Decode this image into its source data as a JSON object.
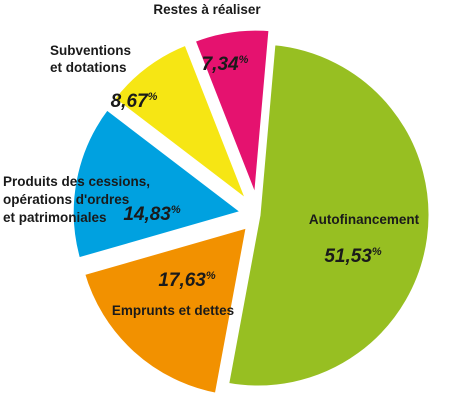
{
  "chart_data": {
    "type": "pie",
    "unit": "%",
    "slices": [
      {
        "label": [
          "Autofinancement"
        ],
        "value": 51.53,
        "display": "51,53",
        "color": "#97bf22"
      },
      {
        "label": [
          "Emprunts et dettes"
        ],
        "value": 17.63,
        "display": "17,63",
        "color": "#f29100"
      },
      {
        "label": [
          "Produits des cessions,",
          "opérations d'ordres",
          "et patrimoniales"
        ],
        "value": 14.83,
        "display": "14,83",
        "color": "#00a1e0"
      },
      {
        "label": [
          "Subventions",
          "et dotations"
        ],
        "value": 8.67,
        "display": "8,67",
        "color": "#f6e614"
      },
      {
        "label": [
          "Restes à réaliser"
        ],
        "value": 7.34,
        "display": "7,34",
        "color": "#e5126f"
      }
    ]
  }
}
